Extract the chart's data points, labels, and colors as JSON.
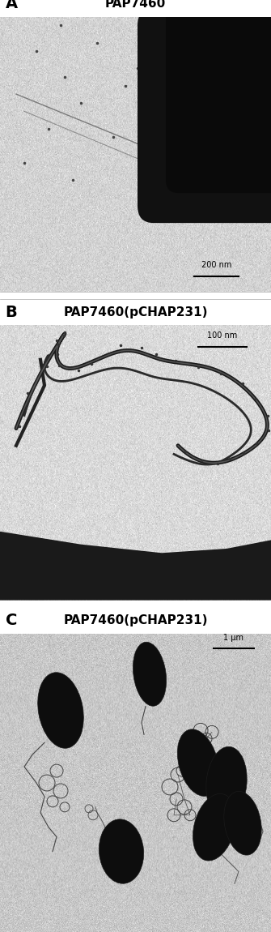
{
  "panel_A_label": "A",
  "panel_A_title": "PAP7460",
  "panel_A_scalebar": "200 nm",
  "panel_B_label": "B",
  "panel_B_title": "PAP7460(pCHAP231)",
  "panel_B_scalebar": "100 nm",
  "panel_C_label": "C",
  "panel_C_title": "PAP7460(pCHAP231)",
  "panel_C_scalebar": "1 μm",
  "bg_light": "#e8e8e8",
  "bg_medium": "#c8c8c8",
  "bg_dark": "#303030",
  "cell_color": "#111111",
  "label_fontsize": 14,
  "title_fontsize": 11,
  "scalebar_fontsize": 7,
  "fig_width": 3.35,
  "fig_height": 11.5,
  "dpi": 100
}
